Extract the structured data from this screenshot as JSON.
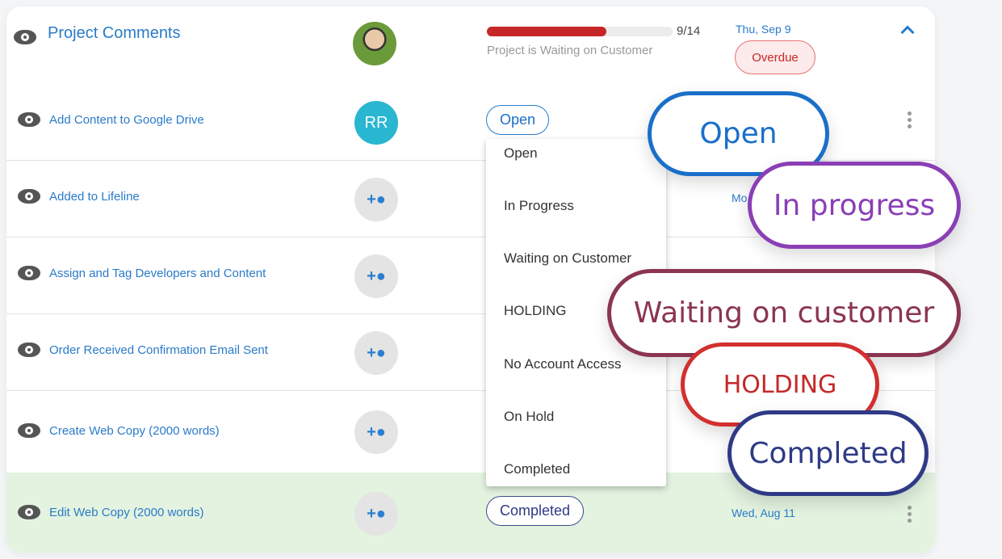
{
  "project": {
    "title": "Project Comments",
    "progress_label": "9/14",
    "progress_fraction": 0.643,
    "status_text": "Project is Waiting on Customer",
    "date": "Thu, Sep 9",
    "badge": "Overdue",
    "collapse_icon": "chevron-up-icon"
  },
  "tasks": [
    {
      "title": "Add Content to Google Drive",
      "assignee": "RR",
      "status": "Open",
      "date": "",
      "icon": "eye-icon"
    },
    {
      "title": "Added to Lifeline",
      "assignee": "",
      "date": "Mo",
      "icon": "eye-icon"
    },
    {
      "title": "Assign and Tag Developers and Content",
      "assignee": "",
      "icon": "eye-icon"
    },
    {
      "title": "Order Received Confirmation Email Sent",
      "assignee": "",
      "icon": "eye-icon"
    },
    {
      "title": "Create Web Copy (2000 words)",
      "assignee": "",
      "icon": "eye-icon"
    },
    {
      "title": "Edit Web Copy (2000 words)",
      "assignee": "",
      "status": "Completed",
      "date": "Wed, Aug 11",
      "icon": "eye-icon"
    }
  ],
  "dropdown": {
    "options": [
      "Open",
      "In Progress",
      "Waiting on Customer",
      "HOLDING",
      "No Account Access",
      "On Hold",
      "Completed"
    ]
  },
  "callouts": [
    {
      "label": "Open",
      "color": "#1a6fc9"
    },
    {
      "label": "In progress",
      "color": "#8a3fb5"
    },
    {
      "label": "Waiting on customer",
      "color": "#8b3550"
    },
    {
      "label": "HOLDING",
      "color": "#d32f2f"
    },
    {
      "label": "Completed",
      "color": "#2f3a86"
    }
  ],
  "colors": {
    "accent": "#2a7bc8",
    "progress": "#c62828",
    "completed_row": "#e3f3e0"
  }
}
